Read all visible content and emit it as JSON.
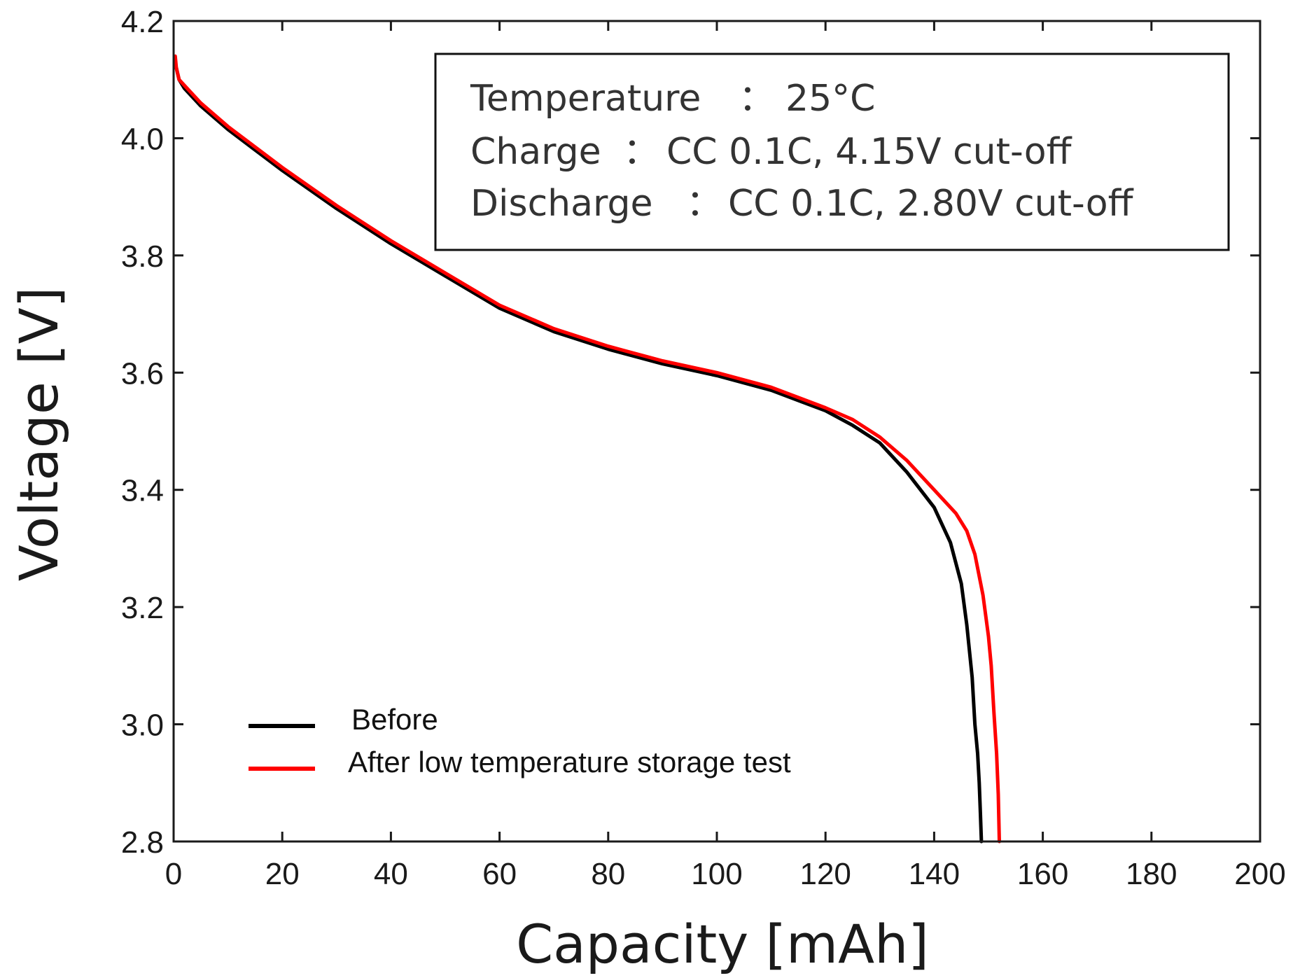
{
  "chart_data": {
    "type": "line",
    "title": "",
    "xlabel": "Capacity [mAh]",
    "ylabel": "Voltage [V]",
    "xlim": [
      0,
      200
    ],
    "ylim": [
      2.8,
      4.2
    ],
    "xticks": [
      0,
      20,
      40,
      60,
      80,
      100,
      120,
      140,
      160,
      180,
      200
    ],
    "xtick_labels": [
      "0",
      "20",
      "40",
      "60",
      "80",
      "100",
      "120",
      "140",
      "160",
      "180",
      "200"
    ],
    "yticks": [
      2.8,
      3.0,
      3.2,
      3.4,
      3.6,
      3.8,
      4.0,
      4.2
    ],
    "ytick_labels": [
      "2.8",
      "3.0",
      "3.2",
      "3.4",
      "3.6",
      "3.8",
      "4.0",
      "4.2"
    ],
    "grid": false,
    "legend_position": "bottom-left",
    "annotation_box": {
      "position": "top-right",
      "lines": [
        {
          "label": "Temperature",
          "sep": "：",
          "value": "25°C"
        },
        {
          "label": "Charge",
          "sep": "：",
          "value": "CC 0.1C, 4.15V cut-off"
        },
        {
          "label": "Discharge",
          "sep": "：",
          "value": "CC 0.1C, 2.80V cut-off"
        }
      ]
    },
    "series": [
      {
        "name": "Before",
        "color": "#000000",
        "x": [
          0.5,
          1,
          2,
          5,
          10,
          15,
          20,
          30,
          40,
          50,
          60,
          70,
          80,
          90,
          100,
          110,
          120,
          125,
          130,
          135,
          140,
          143,
          145,
          146,
          147,
          147.5,
          148,
          148.3,
          148.5,
          148.7
        ],
        "y": [
          4.12,
          4.1,
          4.085,
          4.055,
          4.015,
          3.98,
          3.945,
          3.88,
          3.82,
          3.765,
          3.71,
          3.67,
          3.64,
          3.615,
          3.595,
          3.57,
          3.535,
          3.51,
          3.48,
          3.43,
          3.37,
          3.31,
          3.24,
          3.17,
          3.08,
          3.0,
          2.95,
          2.9,
          2.85,
          2.8
        ]
      },
      {
        "name": "After low temperature storage test",
        "color": "#ff0000",
        "x": [
          0.3,
          0.5,
          1,
          2,
          5,
          10,
          15,
          20,
          30,
          40,
          50,
          60,
          70,
          80,
          90,
          100,
          110,
          120,
          125,
          130,
          135,
          140,
          144,
          146,
          147.5,
          149,
          150,
          150.5,
          151,
          151.5,
          151.8,
          152
        ],
        "y": [
          4.14,
          4.12,
          4.1,
          4.09,
          4.06,
          4.02,
          3.985,
          3.95,
          3.885,
          3.825,
          3.77,
          3.715,
          3.675,
          3.645,
          3.62,
          3.6,
          3.575,
          3.54,
          3.52,
          3.49,
          3.45,
          3.4,
          3.36,
          3.33,
          3.29,
          3.22,
          3.15,
          3.1,
          3.02,
          2.95,
          2.88,
          2.8
        ]
      }
    ]
  }
}
